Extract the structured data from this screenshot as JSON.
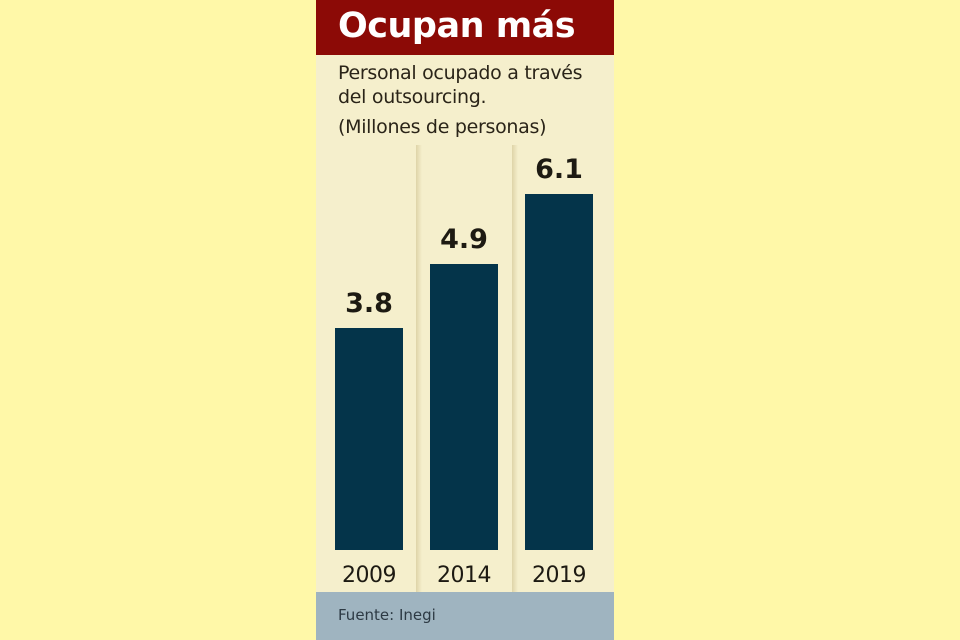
{
  "chart_data": {
    "type": "bar",
    "title": "Ocupan más",
    "subtitle": "Personal ocupado a través del outsourcing.",
    "subtitle_lines": [
      "Personal ocupado a través",
      "del outsourcing."
    ],
    "ylabel": "(Millones de personas)",
    "categories": [
      "2009",
      "2014",
      "2019"
    ],
    "values": [
      3.8,
      4.9,
      6.1
    ],
    "value_labels": [
      "3.8",
      "4.9",
      "6.1"
    ],
    "ylim": [
      0,
      6.1
    ],
    "grid": false,
    "source": "Fuente: Inegi",
    "colors": {
      "bar": "#04344a",
      "header": "#8c0a06",
      "panel": "#f5efcc",
      "footer": "#9fb4c0",
      "background": "#fff8a8"
    }
  }
}
